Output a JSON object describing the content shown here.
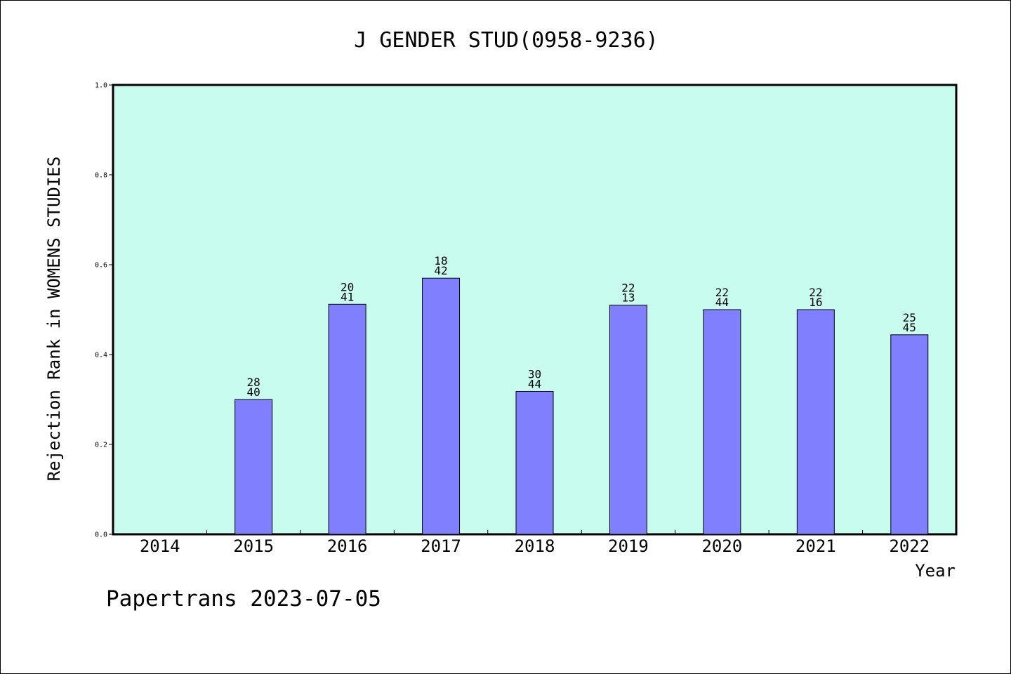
{
  "chart_data": {
    "type": "bar",
    "title": "J GENDER STUD(0958-9236)",
    "xlabel": "Year",
    "ylabel": "Rejection Rank in WOMENS STUDIES",
    "categories": [
      "2014",
      "2015",
      "2016",
      "2017",
      "2018",
      "2019",
      "2020",
      "2021",
      "2022"
    ],
    "values": [
      null,
      0.3,
      0.512,
      0.57,
      0.318,
      0.51,
      0.5,
      0.5,
      0.444
    ],
    "labels_top": [
      null,
      "28",
      "20",
      "18",
      "30",
      "22",
      "22",
      "22",
      "25"
    ],
    "labels_bottom": [
      null,
      "40",
      "41",
      "42",
      "44",
      "13",
      "44",
      "16",
      "45"
    ],
    "ylim": [
      0,
      1.0
    ],
    "yticks": [
      "0.0",
      "0.2",
      "0.4",
      "0.6",
      "0.8",
      "1.0"
    ],
    "grid": false,
    "colors": {
      "plot_background": "#c8fcee",
      "bar_fill": "#8080ff",
      "bar_edge": "#000000"
    }
  },
  "footer": {
    "text": "Papertrans 2023-07-05"
  }
}
